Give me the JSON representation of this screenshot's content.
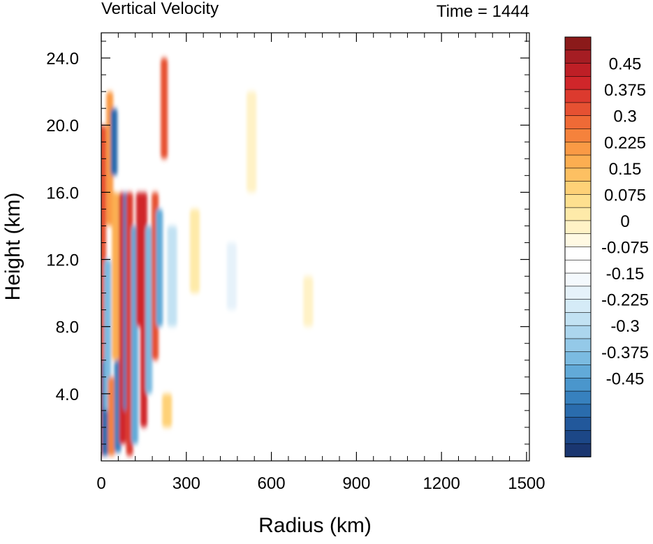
{
  "chart_data": {
    "type": "heatmap",
    "title": "Vertical Velocity",
    "subtitle": "Time = 1444",
    "xlabel": "Radius (km)",
    "ylabel": "Height (km)",
    "xlim": [
      0,
      1510
    ],
    "ylim": [
      0,
      25.5
    ],
    "x_ticks": [
      0,
      300,
      600,
      900,
      1200,
      1500
    ],
    "x_tick_labels": [
      "0",
      "300",
      "600",
      "900",
      "1200",
      "1500"
    ],
    "y_ticks": [
      4,
      8,
      12,
      16,
      20,
      24
    ],
    "y_tick_labels": [
      "4.0",
      "8.0",
      "12.0",
      "16.0",
      "20.0",
      "24.0"
    ],
    "grid": false,
    "colorbar": {
      "position": "right",
      "label_values": [
        0.45,
        0.375,
        0.3,
        0.225,
        0.15,
        0.075,
        0,
        -0.075,
        -0.15,
        -0.225,
        -0.3,
        -0.375,
        -0.45
      ],
      "labels": [
        "0.45",
        "0.375",
        "0.3",
        "0.225",
        "0.15",
        "0.075",
        "0",
        "-0.075",
        "-0.15",
        "-0.225",
        "-0.3",
        "-0.375",
        "-0.45"
      ],
      "colors_top_to_bottom": [
        "#8b1a1a",
        "#a51d23",
        "#be1f26",
        "#d0262a",
        "#dc3a2e",
        "#e65132",
        "#ef6a36",
        "#f5823c",
        "#fa9a45",
        "#fcae51",
        "#fdc062",
        "#fed177",
        "#fee08f",
        "#feeaa9",
        "#fff2c6",
        "#fff9e3",
        "#ffffff",
        "#ffffff",
        "#f4f9fd",
        "#e6f2fa",
        "#d5ebf7",
        "#c2e2f3",
        "#acd6ee",
        "#94c9e8",
        "#7bbbe1",
        "#62aad8",
        "#4a96cc",
        "#3781be",
        "#2a6cad",
        "#22589b",
        "#1c4787",
        "#1a3670"
      ]
    },
    "features": [
      {
        "r": 5,
        "zmin": 0.3,
        "zmax": 20,
        "w": 0.4
      },
      {
        "r": 14,
        "zmin": 0.3,
        "zmax": 6,
        "w": -0.45
      },
      {
        "r": 22,
        "zmin": 3,
        "zmax": 12,
        "w": -0.3
      },
      {
        "r": 30,
        "zmin": 14,
        "zmax": 22,
        "w": 0.3
      },
      {
        "r": 36,
        "zmin": 0.3,
        "zmax": 5,
        "w": 0.35
      },
      {
        "r": 45,
        "zmin": 17,
        "zmax": 21,
        "w": -0.45
      },
      {
        "r": 50,
        "zmin": 6,
        "zmax": 16,
        "w": 0.25
      },
      {
        "r": 58,
        "zmin": 0.5,
        "zmax": 6,
        "w": -0.4
      },
      {
        "r": 75,
        "zmin": 1,
        "zmax": 16,
        "w": 0.5
      },
      {
        "r": 90,
        "zmin": 3,
        "zmax": 16,
        "w": -0.4
      },
      {
        "r": 100,
        "zmin": 0.3,
        "zmax": 16,
        "w": 0.45
      },
      {
        "r": 118,
        "zmin": 1,
        "zmax": 14,
        "w": -0.35
      },
      {
        "r": 135,
        "zmin": 8,
        "zmax": 16,
        "w": 0.5
      },
      {
        "r": 150,
        "zmin": 2,
        "zmax": 16,
        "w": 0.5
      },
      {
        "r": 168,
        "zmin": 4,
        "zmax": 14,
        "w": -0.3
      },
      {
        "r": 190,
        "zmin": 6,
        "zmax": 16,
        "w": 0.4
      },
      {
        "r": 205,
        "zmin": 8,
        "zmax": 15,
        "w": -0.35
      },
      {
        "r": 222,
        "zmin": 18,
        "zmax": 24,
        "w": 0.4
      },
      {
        "r": 232,
        "zmin": 2,
        "zmax": 4,
        "w": 0.2
      },
      {
        "r": 250,
        "zmin": 8,
        "zmax": 14,
        "w": -0.2
      },
      {
        "r": 330,
        "zmin": 10,
        "zmax": 15,
        "w": 0.1
      },
      {
        "r": 460,
        "zmin": 9,
        "zmax": 13,
        "w": -0.1
      },
      {
        "r": 530,
        "zmin": 16,
        "zmax": 22,
        "w": 0.08
      },
      {
        "r": 730,
        "zmin": 8,
        "zmax": 11,
        "w": 0.06
      }
    ]
  }
}
